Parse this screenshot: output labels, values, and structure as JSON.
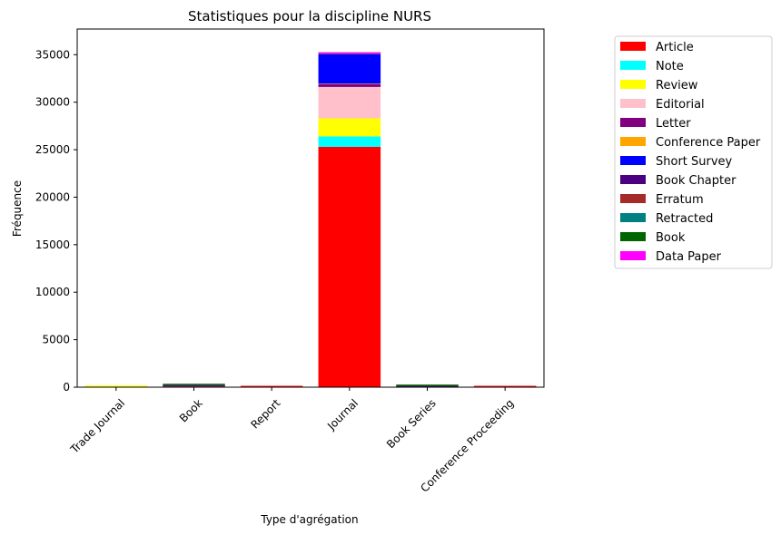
{
  "chart_data": {
    "type": "bar",
    "stacked": true,
    "title": "Statistiques pour la discipline NURS",
    "xlabel": "Type d'agrégation",
    "ylabel": "Fréquence",
    "ylim": [
      0,
      37700
    ],
    "yticks": [
      0,
      5000,
      10000,
      15000,
      20000,
      25000,
      30000,
      35000
    ],
    "grid": false,
    "legend_position": "outside-right",
    "categories": [
      "Trade Journal",
      "Book",
      "Report",
      "Journal",
      "Book Series",
      "Conference Proceeding"
    ],
    "series": [
      {
        "name": "Article",
        "color": "#ff0000",
        "values": [
          30,
          60,
          10,
          25300,
          30,
          10
        ]
      },
      {
        "name": "Note",
        "color": "#00ffff",
        "values": [
          0,
          0,
          0,
          1100,
          0,
          0
        ]
      },
      {
        "name": "Review",
        "color": "#ffff00",
        "values": [
          20,
          10,
          0,
          1900,
          5,
          0
        ]
      },
      {
        "name": "Editorial",
        "color": "#ffc0cb",
        "values": [
          0,
          0,
          0,
          3300,
          0,
          0
        ]
      },
      {
        "name": "Letter",
        "color": "#800080",
        "values": [
          0,
          0,
          0,
          300,
          0,
          0
        ]
      },
      {
        "name": "Conference Paper",
        "color": "#ffa500",
        "values": [
          0,
          0,
          0,
          50,
          0,
          0
        ]
      },
      {
        "name": "Short Survey",
        "color": "#0000ff",
        "values": [
          0,
          0,
          0,
          3100,
          0,
          0
        ]
      },
      {
        "name": "Book Chapter",
        "color": "#4b0082",
        "values": [
          0,
          150,
          0,
          0,
          100,
          0
        ]
      },
      {
        "name": "Erratum",
        "color": "#a52a2a",
        "values": [
          0,
          0,
          0,
          50,
          0,
          0
        ]
      },
      {
        "name": "Retracted",
        "color": "#008080",
        "values": [
          0,
          0,
          0,
          5,
          0,
          0
        ]
      },
      {
        "name": "Book",
        "color": "#006400",
        "values": [
          0,
          5,
          0,
          0,
          5,
          0
        ]
      },
      {
        "name": "Data Paper",
        "color": "#ff00ff",
        "values": [
          0,
          0,
          0,
          5,
          0,
          0
        ]
      }
    ]
  }
}
